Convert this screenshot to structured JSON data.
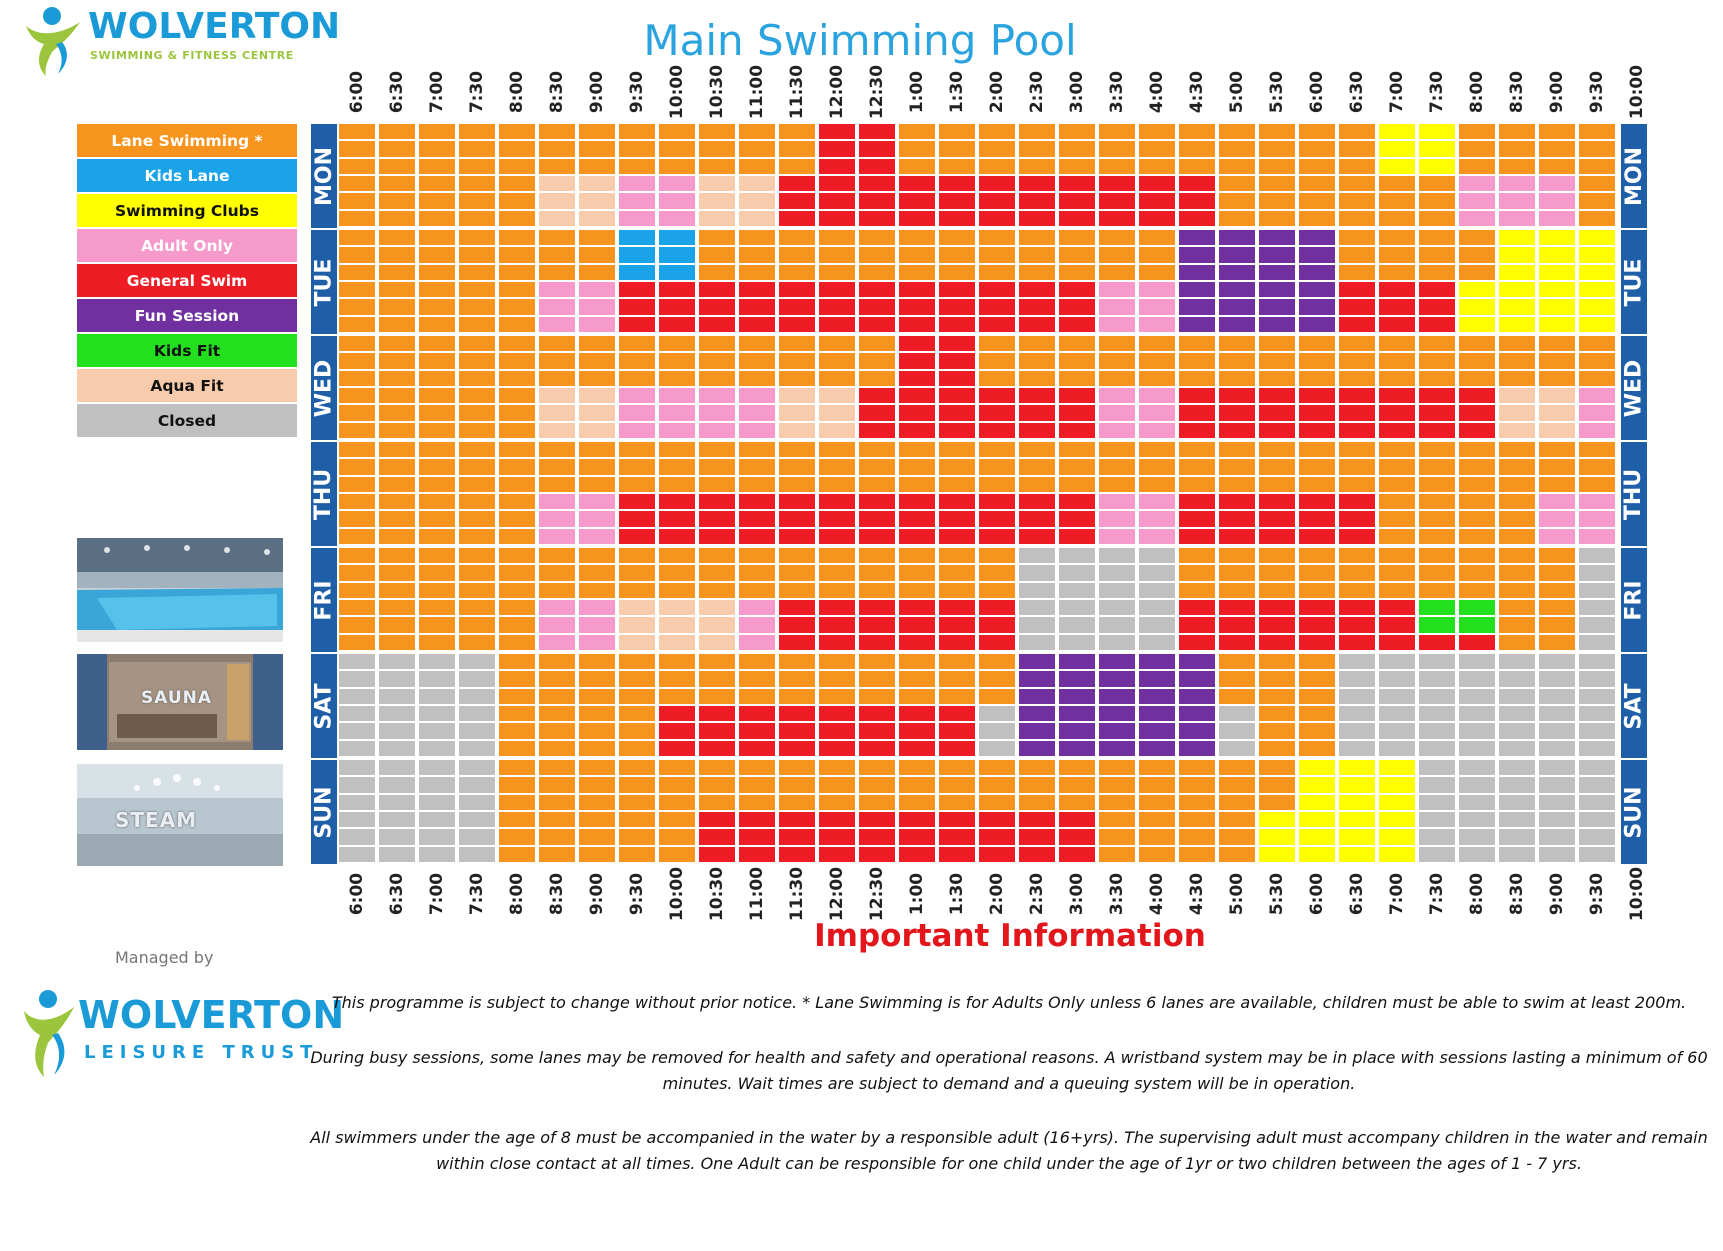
{
  "header": {
    "logo_brand": "WOLVERTON",
    "logo_sub": "SWIMMING & FITNESS CENTRE",
    "title": "Main Swimming Pool"
  },
  "legend": [
    {
      "code": "L",
      "label": "Lane Swimming *",
      "color": "#f7941d",
      "text": "#ffffff"
    },
    {
      "code": "K",
      "label": "Kids Lane",
      "color": "#1aa3e8",
      "text": "#ffffff"
    },
    {
      "code": "Y",
      "label": "Swimming Clubs",
      "color": "#ffff00",
      "text": "#111111"
    },
    {
      "code": "A",
      "label": "Adult Only",
      "color": "#f59acb",
      "text": "#ffffff"
    },
    {
      "code": "G",
      "label": "General Swim",
      "color": "#ee1c25",
      "text": "#ffffff"
    },
    {
      "code": "F",
      "label": "Fun Session",
      "color": "#7030a0",
      "text": "#ffffff"
    },
    {
      "code": "KF",
      "label": "Kids Fit",
      "color": "#22e01e",
      "text": "#111111"
    },
    {
      "code": "Q",
      "label": "Aqua Fit",
      "color": "#f8cbad",
      "text": "#111111"
    },
    {
      "code": "C",
      "label": "Closed",
      "color": "#c0c0c0",
      "text": "#111111"
    }
  ],
  "photos": [
    {
      "name": "pool-photo",
      "label": ""
    },
    {
      "name": "sauna-photo",
      "label": "SAUNA"
    },
    {
      "name": "steam-photo",
      "label": "STEAM"
    }
  ],
  "times": [
    "6:00",
    "6:30",
    "7:00",
    "7:30",
    "8:00",
    "8:30",
    "9:00",
    "9:30",
    "10:00",
    "10:30",
    "11:00",
    "11:30",
    "12:00",
    "12:30",
    "1:00",
    "1:30",
    "2:00",
    "2:30",
    "3:00",
    "3:30",
    "4:00",
    "4:30",
    "5:00",
    "5:30",
    "6:00",
    "6:30",
    "7:00",
    "7:30",
    "8:00",
    "8:30",
    "9:00",
    "9:30",
    "10:00"
  ],
  "days": [
    "MON",
    "TUE",
    "WED",
    "THU",
    "FRI",
    "SAT",
    "SUN"
  ],
  "schedule": {
    "MON": [
      [
        "L"
      ],
      [
        "L"
      ],
      [
        "L"
      ],
      [
        "L"
      ],
      [
        "L"
      ],
      [
        "L",
        "Q"
      ],
      [
        "L",
        "Q"
      ],
      [
        "L",
        "A"
      ],
      [
        "L",
        "A"
      ],
      [
        "L",
        "Q"
      ],
      [
        "L",
        "Q"
      ],
      [
        "L",
        "G"
      ],
      [
        "G"
      ],
      [
        "G"
      ],
      [
        "L",
        "G"
      ],
      [
        "L",
        "G"
      ],
      [
        "L",
        "G"
      ],
      [
        "L",
        "G"
      ],
      [
        "L",
        "G"
      ],
      [
        "L",
        "G"
      ],
      [
        "L",
        "G"
      ],
      [
        "L",
        "G"
      ],
      [
        "L"
      ],
      [
        "L"
      ],
      [
        "L"
      ],
      [
        "L"
      ],
      [
        "Y",
        "L"
      ],
      [
        "Y",
        "L"
      ],
      [
        "L",
        "A"
      ],
      [
        "L",
        "A"
      ],
      [
        "L",
        "A"
      ],
      [
        "L"
      ]
    ],
    "TUE": [
      [
        "L"
      ],
      [
        "L"
      ],
      [
        "L"
      ],
      [
        "L"
      ],
      [
        "L"
      ],
      [
        "L",
        "A"
      ],
      [
        "L",
        "A"
      ],
      [
        "K",
        "G"
      ],
      [
        "K",
        "G"
      ],
      [
        "L",
        "G"
      ],
      [
        "L",
        "G"
      ],
      [
        "L",
        "G"
      ],
      [
        "L",
        "G"
      ],
      [
        "L",
        "G"
      ],
      [
        "L",
        "G"
      ],
      [
        "L",
        "G"
      ],
      [
        "L",
        "G"
      ],
      [
        "L",
        "G"
      ],
      [
        "L",
        "G"
      ],
      [
        "L",
        "A"
      ],
      [
        "L",
        "A"
      ],
      [
        "F"
      ],
      [
        "F"
      ],
      [
        "F"
      ],
      [
        "F"
      ],
      [
        "L",
        "G"
      ],
      [
        "L",
        "G"
      ],
      [
        "L",
        "G"
      ],
      [
        "L",
        "Y"
      ],
      [
        "Y"
      ],
      [
        "Y"
      ],
      [
        "Y"
      ]
    ],
    "WED": [
      [
        "L"
      ],
      [
        "L"
      ],
      [
        "L"
      ],
      [
        "L"
      ],
      [
        "L"
      ],
      [
        "L",
        "Q"
      ],
      [
        "L",
        "Q"
      ],
      [
        "L",
        "A"
      ],
      [
        "L",
        "A"
      ],
      [
        "L",
        "A"
      ],
      [
        "L",
        "A"
      ],
      [
        "L",
        "Q"
      ],
      [
        "L",
        "Q"
      ],
      [
        "L",
        "G"
      ],
      [
        "G"
      ],
      [
        "G"
      ],
      [
        "L",
        "G"
      ],
      [
        "L",
        "G"
      ],
      [
        "L",
        "G"
      ],
      [
        "L",
        "A"
      ],
      [
        "L",
        "A"
      ],
      [
        "L",
        "G"
      ],
      [
        "L",
        "G"
      ],
      [
        "L",
        "G"
      ],
      [
        "L",
        "G"
      ],
      [
        "L",
        "G"
      ],
      [
        "L",
        "G"
      ],
      [
        "L",
        "G"
      ],
      [
        "L",
        "G"
      ],
      [
        "L",
        "Q"
      ],
      [
        "L",
        "Q"
      ],
      [
        "L",
        "A"
      ]
    ],
    "THU": [
      [
        "L"
      ],
      [
        "L"
      ],
      [
        "L"
      ],
      [
        "L"
      ],
      [
        "L"
      ],
      [
        "L",
        "A"
      ],
      [
        "L",
        "A"
      ],
      [
        "L",
        "G"
      ],
      [
        "L",
        "G"
      ],
      [
        "L",
        "G"
      ],
      [
        "L",
        "G"
      ],
      [
        "L",
        "G"
      ],
      [
        "L",
        "G"
      ],
      [
        "L",
        "G"
      ],
      [
        "L",
        "G"
      ],
      [
        "L",
        "G"
      ],
      [
        "L",
        "G"
      ],
      [
        "L",
        "G"
      ],
      [
        "L",
        "G"
      ],
      [
        "L",
        "A"
      ],
      [
        "L",
        "A"
      ],
      [
        "L",
        "G"
      ],
      [
        "L",
        "G"
      ],
      [
        "L",
        "G"
      ],
      [
        "L",
        "G"
      ],
      [
        "L",
        "G"
      ],
      [
        "L"
      ],
      [
        "L"
      ],
      [
        "L"
      ],
      [
        "L"
      ],
      [
        "L",
        "A"
      ],
      [
        "L",
        "A"
      ]
    ],
    "FRI": [
      [
        "L"
      ],
      [
        "L"
      ],
      [
        "L"
      ],
      [
        "L"
      ],
      [
        "L"
      ],
      [
        "L",
        "A"
      ],
      [
        "L",
        "A"
      ],
      [
        "L",
        "Q"
      ],
      [
        "L",
        "Q"
      ],
      [
        "L",
        "Q"
      ],
      [
        "L",
        "A"
      ],
      [
        "L",
        "G"
      ],
      [
        "L",
        "G"
      ],
      [
        "L",
        "G"
      ],
      [
        "L",
        "G"
      ],
      [
        "L",
        "G"
      ],
      [
        "L",
        "G"
      ],
      [
        "C"
      ],
      [
        "C"
      ],
      [
        "C"
      ],
      [
        "C"
      ],
      [
        "L",
        "G"
      ],
      [
        "L",
        "G"
      ],
      [
        "L",
        "G"
      ],
      [
        "L",
        "G"
      ],
      [
        "L",
        "G"
      ],
      [
        "L",
        "G"
      ],
      [
        "L",
        "KF",
        "G"
      ],
      [
        "L",
        "KF",
        "G"
      ],
      [
        "L"
      ],
      [
        "L"
      ],
      [
        "C"
      ]
    ],
    "SAT": [
      [
        "C"
      ],
      [
        "C"
      ],
      [
        "C"
      ],
      [
        "C"
      ],
      [
        "L"
      ],
      [
        "L"
      ],
      [
        "L"
      ],
      [
        "L"
      ],
      [
        "L",
        "G"
      ],
      [
        "L",
        "G"
      ],
      [
        "L",
        "G"
      ],
      [
        "L",
        "G"
      ],
      [
        "L",
        "G"
      ],
      [
        "L",
        "G"
      ],
      [
        "L",
        "G"
      ],
      [
        "L",
        "G"
      ],
      [
        "L",
        "C"
      ],
      [
        "F"
      ],
      [
        "F"
      ],
      [
        "F"
      ],
      [
        "F"
      ],
      [
        "F"
      ],
      [
        "L",
        "C"
      ],
      [
        "L"
      ],
      [
        "L"
      ],
      [
        "C"
      ],
      [
        "C"
      ],
      [
        "C"
      ],
      [
        "C"
      ],
      [
        "C"
      ],
      [
        "C"
      ],
      [
        "C"
      ]
    ],
    "SUN": [
      [
        "C"
      ],
      [
        "C"
      ],
      [
        "C"
      ],
      [
        "C"
      ],
      [
        "L"
      ],
      [
        "L"
      ],
      [
        "L"
      ],
      [
        "L"
      ],
      [
        "L"
      ],
      [
        "L",
        "G"
      ],
      [
        "L",
        "G"
      ],
      [
        "L",
        "G"
      ],
      [
        "L",
        "G"
      ],
      [
        "L",
        "G"
      ],
      [
        "L",
        "G"
      ],
      [
        "L",
        "G"
      ],
      [
        "L",
        "G"
      ],
      [
        "L",
        "G"
      ],
      [
        "L",
        "G"
      ],
      [
        "L"
      ],
      [
        "L"
      ],
      [
        "L"
      ],
      [
        "L"
      ],
      [
        "L",
        "Y"
      ],
      [
        "Y"
      ],
      [
        "Y"
      ],
      [
        "Y"
      ],
      [
        "C"
      ],
      [
        "C"
      ],
      [
        "C"
      ],
      [
        "C"
      ],
      [
        "C"
      ]
    ]
  },
  "footer": {
    "title": "Important Information",
    "managed_by": "Managed by",
    "trust_brand": "WOLVERTON",
    "trust_sub": "LEISURE TRUST",
    "notes": [
      "This programme is subject to change without prior notice.  * Lane Swimming is for Adults Only unless 6 lanes are available, children must be able to swim at least 200m.",
      "During busy sessions, some lanes may be removed for health and safety and operational reasons. A wristband system may be in place with sessions lasting a minimum of 60 minutes. Wait times are subject to demand and a queuing system will be in operation.",
      "All swimmers under the age of 8 must be accompanied in the water by a responsible adult (16+yrs). The supervising adult must accompany children in the water and remain within close contact at all times.  One Adult can be responsible for one child under the age of 1yr or two children between the ages of 1 - 7 yrs."
    ]
  }
}
